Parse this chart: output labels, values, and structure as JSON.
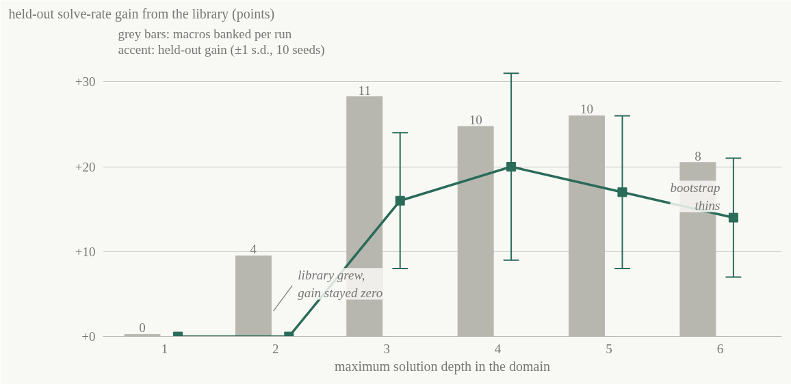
{
  "chart_data": {
    "type": "bar",
    "title": "held-out solve-rate gain from the library (points)",
    "xlabel": "maximum solution depth in the domain",
    "categories": [
      "1",
      "2",
      "3",
      "4",
      "5",
      "6"
    ],
    "series": [
      {
        "axis": "y2",
        "color": "#b8b7af",
        "values": [
          0.1,
          3.8,
          11.3,
          9.9,
          10.4,
          8.2
        ],
        "value_labels": [
          "0",
          "4",
          "11",
          "10",
          "10",
          "8"
        ]
      },
      {
        "type": "line",
        "color": "#2a6b5a",
        "values": [
          0,
          0,
          16,
          20,
          17,
          14
        ],
        "errors": [
          null,
          null,
          8,
          11,
          9,
          7
        ],
        "marker": "square",
        "line_style": "solid"
      }
    ],
    "ylim": [
      0,
      33
    ],
    "yticks": [
      {
        "value": 0,
        "label": "+0"
      },
      {
        "value": 10,
        "label": "+10"
      },
      {
        "value": 20,
        "label": "+20"
      },
      {
        "value": 30,
        "label": "+30"
      }
    ],
    "y2lim": [
      0,
      13.2
    ],
    "grid": "y",
    "annotations": [
      "grey bars: macros banked per run",
      "accent: held-out gain (±1 s.d., 10 seeds)",
      "library grew,\ngain stayed zero",
      "bootstrap\nthins"
    ]
  }
}
